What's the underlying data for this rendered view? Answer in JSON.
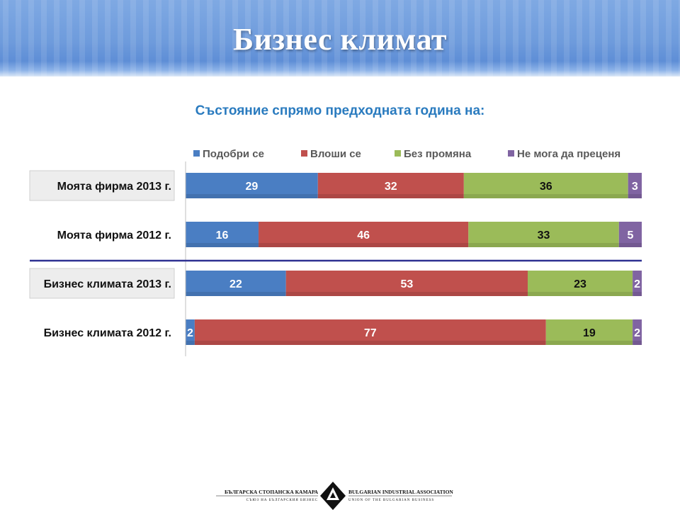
{
  "slide": {
    "title": "Бизнес климат"
  },
  "colors": {
    "improved": "#4a7ec3",
    "worse": "#c0504d",
    "no_change": "#9bbb59",
    "cannot_judge": "#8064a2"
  },
  "chart_data": {
    "type": "bar",
    "orientation": "horizontal",
    "stacked": true,
    "percent": true,
    "title": "Състояние спрямо предходната година на:",
    "categories": [
      "Моята фирма 2013 г.",
      "Моята фирма 2012 г.",
      "Бизнес климата 2013 г.",
      "Бизнес климата 2012 г."
    ],
    "series": [
      {
        "name": "Подобри се",
        "values": [
          29,
          16,
          22,
          2
        ]
      },
      {
        "name": "Влоши се",
        "values": [
          32,
          46,
          53,
          77
        ]
      },
      {
        "name": "Без промяна",
        "values": [
          36,
          33,
          23,
          19
        ]
      },
      {
        "name": "Не мога да преценя",
        "values": [
          3,
          5,
          2,
          2
        ]
      }
    ],
    "legend": "top",
    "grid": false
  },
  "footer": {
    "org_bg": "БЪЛГАРСКА СТОПАНСКА КАМАРА",
    "org_bg_sub": "СЪЮЗ НА БЪЛГАРСКИЯ БИЗНЕС",
    "org_en": "BULGARIAN INDUSTRIAL ASSOCIATION",
    "org_en_sub": "UNION OF THE BULGARIAN BUSINESS"
  }
}
